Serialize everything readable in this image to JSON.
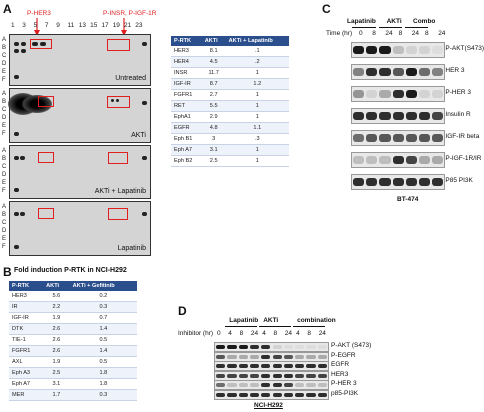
{
  "panelA": {
    "letter": "A",
    "top_labels": {
      "left": "P-HER3",
      "right": "P-INSR, P-IGF-1R"
    },
    "column_numbers": [
      "1",
      "3",
      "5",
      "7",
      "9",
      "11",
      "13",
      "15",
      "17",
      "19",
      "21",
      "23"
    ],
    "row_letters": [
      "A",
      "B",
      "C",
      "D",
      "E",
      "F"
    ],
    "arrays": [
      {
        "caption": "Untreated"
      },
      {
        "caption": "AKTi"
      },
      {
        "caption": "AKTi + Lapatinib"
      },
      {
        "caption": "Lapatinib"
      }
    ],
    "table": {
      "headers": [
        "P-RTK",
        "AKTi",
        "AKTi + Lapatinib"
      ],
      "rows": [
        [
          "HER3",
          "8.1",
          ".1"
        ],
        [
          "HER4",
          "4.5",
          ".2"
        ],
        [
          "INSR",
          "11.7",
          "1"
        ],
        [
          "IGF-IR",
          "8.7",
          "1.2"
        ],
        [
          "FGFR1",
          "2.7",
          "1"
        ],
        [
          "RET",
          "5.5",
          "1"
        ],
        [
          "EphA1",
          "2.9",
          "1"
        ],
        [
          "EGFR",
          "4.8",
          "1.1"
        ],
        [
          "Eph B1",
          "3",
          ".3"
        ],
        [
          "Eph A7",
          "3.1",
          "1"
        ],
        [
          "Eph B2",
          "2.5",
          "1"
        ]
      ]
    }
  },
  "panelB": {
    "letter": "B",
    "title": "Fold induction P-RTK in NCI-H292",
    "table": {
      "headers": [
        "P-RTK",
        "AKTi",
        "AKTi + Gefitinib"
      ],
      "rows": [
        [
          "HER3",
          "5.6",
          "0.2"
        ],
        [
          "IR",
          "2.2",
          "0.3"
        ],
        [
          "IGF-IR",
          "1.9",
          "0.7"
        ],
        [
          "DTK",
          "2.6",
          "1.4"
        ],
        [
          "TIE-1",
          "2.6",
          "0.5"
        ],
        [
          "FGFR1",
          "2.6",
          "1.4"
        ],
        [
          "AXL",
          "1.9",
          "0.5"
        ],
        [
          "Eph A3",
          "2.5",
          "1.8"
        ],
        [
          "Eph A7",
          "3.1",
          "1.8"
        ],
        [
          "MER",
          "1.7",
          "0.3"
        ]
      ]
    }
  },
  "panelC": {
    "letter": "C",
    "groups": [
      "Lapatinib",
      "AKTi",
      "Combo"
    ],
    "time_label": "Time (hr)",
    "times": [
      "0",
      "8",
      "24",
      "8",
      "24",
      "8",
      "24"
    ],
    "rows": [
      "P-AKT(S473)",
      "HER 3",
      "P-HER 3",
      "Insulin R",
      "IGF-IR beta",
      "P-IGF-1R/IR",
      "P85 PI3K"
    ],
    "cell_line": "BT-474"
  },
  "panelD": {
    "letter": "D",
    "groups": [
      "Lapatinib",
      "AKTi",
      "combination"
    ],
    "time_label": "Inhibitor (hr)",
    "times": [
      "0",
      "4",
      "8",
      "24",
      "4",
      "8",
      "24",
      "4",
      "8",
      "24"
    ],
    "rows": [
      "P-AKT (S473)",
      "P-EGFR",
      "EGFR",
      "HER3",
      "P-HER 3",
      "p85-PI3K"
    ],
    "cell_line": "NCI-H292"
  }
}
